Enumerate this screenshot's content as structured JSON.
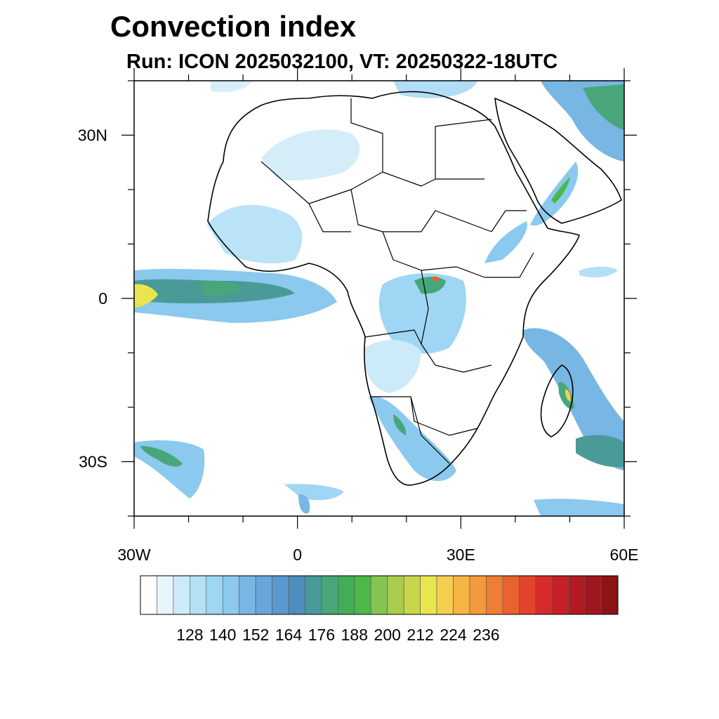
{
  "title": "Convection index",
  "subtitle": "Run: ICON 2025032100,  VT: 20250322-18UTC",
  "map": {
    "projection": "lat-lon",
    "lon_range": [
      -30,
      60
    ],
    "lat_range": [
      -40,
      40
    ],
    "lon_ticks": [
      {
        "value": -30,
        "label": "30W"
      },
      {
        "value": 0,
        "label": "0"
      },
      {
        "value": 30,
        "label": "30E"
      },
      {
        "value": 60,
        "label": "60E"
      }
    ],
    "lat_ticks": [
      {
        "value": 30,
        "label": "30N"
      },
      {
        "value": 0,
        "label": "0"
      },
      {
        "value": -30,
        "label": "30S"
      }
    ]
  },
  "colorbar": {
    "colors": [
      "#ffffff",
      "#e8f5fc",
      "#cdeaf8",
      "#b4e0f6",
      "#9ed6f4",
      "#8bc9ee",
      "#78b6e4",
      "#6aa6dc",
      "#5a98cf",
      "#4d8ebd",
      "#4a9a98",
      "#48a67a",
      "#3fae56",
      "#4cb84a",
      "#86c452",
      "#a9cc4f",
      "#c8d64c",
      "#e9e54f",
      "#f6cf4f",
      "#f5b444",
      "#f39a3c",
      "#ef7e35",
      "#ea6230",
      "#e2452c",
      "#d72b2b",
      "#c82026",
      "#b21a22",
      "#9e171e",
      "#8b1414"
    ],
    "labels": [
      "128",
      "140",
      "152",
      "164",
      "176",
      "188",
      "200",
      "212",
      "224",
      "236"
    ],
    "label_start_index": 2,
    "label_step": 2
  }
}
